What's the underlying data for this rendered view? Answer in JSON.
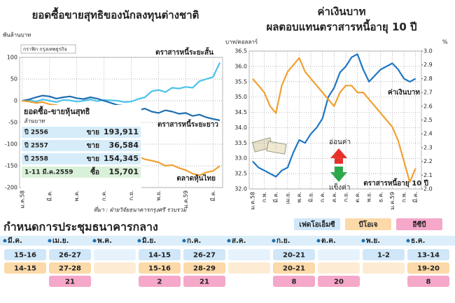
{
  "chart_data": [
    {
      "type": "line",
      "title": "ยอดซื้อขายสุทธิของนักลงทุนต่างชาติ",
      "y_label": "พันล้านบาท",
      "badge": "กราฟิก กรุงเทพธุรกิจ",
      "source": "ที่มา : ฝ่ายวิจัยธนาคารกรุงศรี รวบรวม",
      "x": [
        0,
        0.5,
        1,
        1.5,
        2,
        2.5,
        3,
        3.5,
        4,
        4.5,
        5,
        5.5,
        6,
        6.5,
        7,
        7.5,
        8,
        8.5,
        9,
        9.5,
        10,
        10.5,
        11,
        11.5,
        12,
        12.5,
        13,
        13.5,
        14,
        14.5
      ],
      "xlim": [
        -0.2,
        14.7
      ],
      "xticks": [
        {
          "value": 0,
          "label": "ม.ค.58"
        },
        {
          "value": 2,
          "label": "มี.ค."
        },
        {
          "value": 4,
          "label": "พ.ค."
        },
        {
          "value": 6,
          "label": "ก.ค."
        },
        {
          "value": 8,
          "label": "ก.ย."
        },
        {
          "value": 10,
          "label": "พ.ย."
        },
        {
          "value": 12,
          "label": "ม.ค.59"
        },
        {
          "value": 14,
          "label": "มี.ค."
        }
      ],
      "ylim": [
        -200,
        100
      ],
      "yticks": [
        100,
        50,
        0,
        -50,
        -100,
        -150,
        -200
      ],
      "grid": true,
      "series": [
        {
          "name": "ตราสารหนี้ระยะสั้น",
          "color": "#4cc3ea",
          "values": [
            0,
            2,
            -2,
            3,
            0,
            -3,
            2,
            1,
            -2,
            0,
            3,
            -1,
            2,
            1,
            0,
            -3,
            -2,
            4,
            8,
            22,
            25,
            20,
            30,
            28,
            32,
            30,
            45,
            50,
            55,
            88
          ]
        },
        {
          "name": "ตราสารหนี้ระยะยาว",
          "color": "#1f6fb0",
          "values": [
            0,
            3,
            8,
            12,
            10,
            5,
            8,
            10,
            6,
            4,
            8,
            5,
            0,
            -5,
            -10,
            -12,
            -20,
            -22,
            -18,
            -25,
            -28,
            -22,
            -25,
            -30,
            -28,
            -35,
            -32,
            -38,
            -42,
            -45
          ]
        },
        {
          "name": "ตลาดหุ้นไทย",
          "color": "#f0a030",
          "values": [
            0,
            -2,
            -5,
            -3,
            -8,
            -10,
            -15,
            -12,
            -20,
            -25,
            -30,
            -40,
            -60,
            -80,
            -100,
            -115,
            -125,
            -128,
            -135,
            -138,
            -142,
            -150,
            -148,
            -155,
            -160,
            -168,
            -172,
            -165,
            -162,
            -150
          ]
        }
      ],
      "inset": {
        "title": "ยอดซื้อ-ขายหุ้นสุทธิ",
        "unit": "ล้านบาท",
        "rows": [
          {
            "label": "ปี 2556",
            "action": "ขาย",
            "amount": "193,911"
          },
          {
            "label": "ปี 2557",
            "action": "ขาย",
            "amount": "36,584"
          },
          {
            "label": "ปี 2558",
            "action": "ขาย",
            "amount": "154,345"
          },
          {
            "label": "1-11 มี.ค.2559",
            "action": "ซื้อ",
            "amount": "15,701"
          }
        ]
      }
    },
    {
      "type": "line",
      "title": "ค่าเงินบาท",
      "subtitle": "ผลตอบแทนตราสารหนี้อายุ 10 ปี",
      "y_label": "บาท/ดอลลาร์",
      "y2_label": "%",
      "annotations": [
        "อ่อนค่า",
        "แข็งค่า"
      ],
      "x": [
        0,
        0.5,
        1,
        1.5,
        2,
        2.5,
        3,
        3.5,
        4,
        4.5,
        5,
        5.5,
        6,
        6.5,
        7,
        7.5,
        8,
        8.5,
        9,
        9.5,
        10,
        10.5,
        11,
        11.5,
        12,
        12.5,
        13,
        13.5,
        14
      ],
      "xlim": [
        -0.3,
        14.5
      ],
      "xticks": [
        {
          "value": 0,
          "label": "ม.ค.58"
        },
        {
          "value": 1,
          "label": "ก.พ."
        },
        {
          "value": 2,
          "label": "มี.ค."
        },
        {
          "value": 3,
          "label": "เม.ย."
        },
        {
          "value": 4,
          "label": "พ.ค."
        },
        {
          "value": 5,
          "label": "มิ.ย."
        },
        {
          "value": 6,
          "label": "ก.ค."
        },
        {
          "value": 7,
          "label": "ส.ค."
        },
        {
          "value": 8,
          "label": "ก.ย."
        },
        {
          "value": 9,
          "label": "ต.ค."
        },
        {
          "value": 10,
          "label": "พ.ย."
        },
        {
          "value": 11,
          "label": "ธ.ค."
        },
        {
          "value": 12,
          "label": "ม.ค.59"
        },
        {
          "value": 13,
          "label": "ก.พ."
        },
        {
          "value": 14,
          "label": "มี.ค."
        }
      ],
      "ylim": [
        32.0,
        36.5
      ],
      "yticks": [
        {
          "value": 32,
          "label": "32.0"
        },
        32.5,
        {
          "value": 33,
          "label": "33.0"
        },
        33.5,
        {
          "value": 34,
          "label": "34.0"
        },
        34.5,
        {
          "value": 35,
          "label": "35.0"
        },
        35.5,
        {
          "value": 36,
          "label": "36.0"
        },
        36.5
      ],
      "y2lim": [
        2.0,
        3.0
      ],
      "y2ticks": [
        {
          "value": 2,
          "label": "2.0"
        },
        2.1,
        2.2,
        2.3,
        2.4,
        2.5,
        2.6,
        2.7,
        2.8,
        2.9,
        {
          "value": 3,
          "label": "3.0"
        }
      ],
      "grid": true,
      "series": [
        {
          "name": "ค่าเงินบาท",
          "color": "#1f77c4",
          "values": [
            32.9,
            32.7,
            32.6,
            32.5,
            32.4,
            32.6,
            32.7,
            33.2,
            33.6,
            33.5,
            33.8,
            34.0,
            34.3,
            35.0,
            35.3,
            35.8,
            36.0,
            36.3,
            36.4,
            35.9,
            35.5,
            35.7,
            35.9,
            36.0,
            36.1,
            35.9,
            35.6,
            35.5,
            35.6
          ]
        },
        {
          "name": "ตราสารหนี้อายุ 10 ปี",
          "color": "#f0a030",
          "axis": "y2",
          "values": [
            2.8,
            2.75,
            2.7,
            2.6,
            2.55,
            2.75,
            2.85,
            2.9,
            2.95,
            2.85,
            2.8,
            2.75,
            2.7,
            2.65,
            2.6,
            2.7,
            2.75,
            2.75,
            2.7,
            2.7,
            2.65,
            2.6,
            2.55,
            2.5,
            2.45,
            2.35,
            2.2,
            2.05,
            2.15
          ]
        }
      ]
    }
  ],
  "schedule": {
    "title": "กำหนดการประชุมธนาคารกลาง",
    "legend": [
      "เฟดโอเอ็มซี",
      "บีโอเจ",
      "อีซีบี"
    ],
    "months": [
      "มี.ค.",
      "เม.ย.",
      "พ.ค.",
      "มิ.ย.",
      "ก.ค.",
      "ส.ค.",
      "ก.ย.",
      "ต.ค.",
      "พ.ย.",
      "ธ.ค."
    ],
    "rows": [
      [
        "15-16",
        "26-27",
        null,
        "14-15",
        "26-27",
        null,
        "20-21",
        null,
        "1-2",
        "13-14"
      ],
      [
        "14-15",
        "27-28",
        null,
        "15-16",
        "28-29",
        null,
        "20-21",
        null,
        null,
        "19-20"
      ],
      [
        null,
        "21",
        null,
        "2",
        "21",
        null,
        "8",
        "20",
        null,
        "8"
      ]
    ]
  }
}
